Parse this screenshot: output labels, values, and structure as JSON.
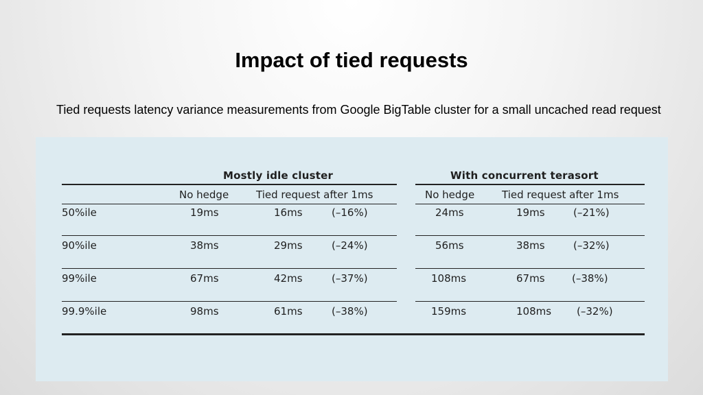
{
  "slide": {
    "title": "Impact of tied requests",
    "subtitle": "Tied requests latency variance measurements from Google BigTable cluster for a small uncached read request"
  },
  "table": {
    "groups": [
      {
        "title": "Mostly idle cluster",
        "columns": [
          "No hedge",
          "Tied request after 1ms"
        ]
      },
      {
        "title": "With concurrent terasort",
        "columns": [
          "No hedge",
          "Tied request after 1ms"
        ]
      }
    ],
    "rows": [
      {
        "label": "50%ile",
        "idle": [
          "19ms",
          "16ms",
          "(–16%)"
        ],
        "terasort": [
          "24ms",
          "19ms",
          "(–21%)"
        ]
      },
      {
        "label": "90%ile",
        "idle": [
          "38ms",
          "29ms",
          "(–24%)"
        ],
        "terasort": [
          "56ms",
          "38ms",
          "(–32%)"
        ]
      },
      {
        "label": "99%ile",
        "idle": [
          "67ms",
          "42ms",
          "(–37%)"
        ],
        "terasort": [
          "108ms",
          "67ms",
          "(–38%)"
        ]
      },
      {
        "label": "99.9%ile",
        "idle": [
          "98ms",
          "61ms",
          "(–38%)"
        ],
        "terasort": [
          "159ms",
          "108ms",
          "(–32%)"
        ]
      }
    ]
  },
  "colors": {
    "panel_background": "#ddebf1",
    "rule": "#222222"
  }
}
